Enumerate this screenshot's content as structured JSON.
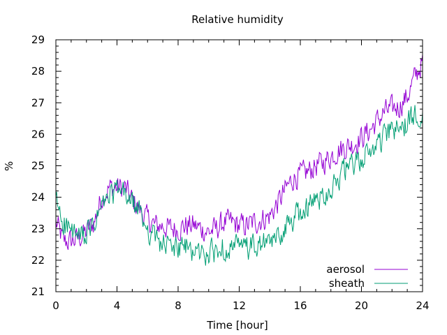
{
  "chart_data": {
    "type": "line",
    "title": "Relative humidity",
    "xlabel": "Time [hour]",
    "ylabel": "%",
    "xlim": [
      0,
      24
    ],
    "ylim": [
      21,
      29
    ],
    "xticks": [
      "0",
      "4",
      "8",
      "12",
      "16",
      "20",
      "24"
    ],
    "yticks": [
      "21",
      "22",
      "23",
      "24",
      "25",
      "26",
      "27",
      "28",
      "29"
    ],
    "grid": false,
    "legend_position": "bottom-right",
    "series": [
      {
        "name": "aerosol",
        "color": "#9400d3",
        "x": [
          0,
          0.5,
          1,
          1.5,
          2,
          2.5,
          3,
          3.5,
          4,
          4.5,
          5,
          5.5,
          6,
          6.5,
          7,
          7.5,
          8,
          8.5,
          9,
          9.5,
          10,
          10.5,
          11,
          11.5,
          12,
          12.5,
          13,
          13.5,
          14,
          14.5,
          15,
          15.5,
          16,
          16.5,
          17,
          17.5,
          18,
          18.5,
          19,
          19.5,
          20,
          20.5,
          21,
          21.5,
          22,
          22.5,
          23,
          23.5,
          24
        ],
        "y": [
          23.2,
          22.6,
          22.6,
          22.7,
          22.9,
          23.2,
          24.0,
          24.3,
          24.3,
          24.3,
          23.9,
          23.6,
          23.3,
          23.1,
          23.1,
          23.0,
          23.0,
          23.1,
          23.1,
          23.0,
          22.9,
          23.0,
          23.2,
          23.2,
          23.1,
          23.1,
          23.2,
          23.3,
          23.4,
          23.8,
          24.2,
          24.6,
          24.7,
          24.8,
          25.0,
          25.1,
          25.3,
          25.5,
          25.6,
          25.7,
          25.9,
          26.1,
          26.4,
          26.7,
          26.8,
          26.9,
          27.2,
          27.8,
          28.3
        ]
      },
      {
        "name": "sheath",
        "color": "#009e73",
        "x": [
          0,
          0.5,
          1,
          1.5,
          2,
          2.5,
          3,
          3.5,
          4,
          4.5,
          5,
          5.5,
          6,
          6.5,
          7,
          7.5,
          8,
          8.5,
          9,
          9.5,
          10,
          10.5,
          11,
          11.5,
          12,
          12.5,
          13,
          13.5,
          14,
          14.5,
          15,
          15.5,
          16,
          16.5,
          17,
          17.5,
          18,
          18.5,
          19,
          19.5,
          20,
          20.5,
          21,
          21.5,
          22,
          22.5,
          23,
          23.5,
          24
        ],
        "y": [
          23.9,
          23.2,
          22.9,
          22.7,
          22.8,
          23.1,
          23.7,
          24.0,
          24.2,
          24.1,
          23.8,
          23.5,
          23.0,
          22.7,
          22.5,
          22.4,
          22.4,
          22.4,
          22.3,
          22.2,
          22.2,
          22.3,
          22.4,
          22.4,
          22.4,
          22.4,
          22.4,
          22.5,
          22.5,
          22.7,
          23.0,
          23.3,
          23.5,
          23.7,
          23.9,
          24.1,
          24.3,
          24.6,
          24.9,
          25.0,
          25.2,
          25.4,
          25.7,
          25.9,
          26.1,
          26.2,
          26.3,
          26.6,
          26.8
        ]
      }
    ]
  }
}
